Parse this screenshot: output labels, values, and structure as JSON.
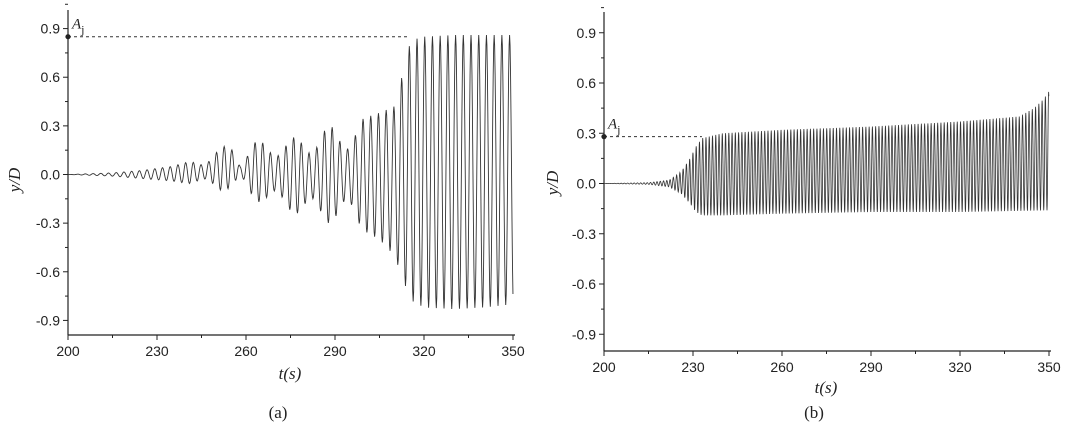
{
  "chart_data": [
    {
      "type": "line",
      "panel_label": "(a)",
      "xlabel": "t(s)",
      "ylabel": "y/D",
      "xlim": [
        200,
        350
      ],
      "ylim": [
        -0.99,
        0.99
      ],
      "x_ticks": [
        200,
        230,
        260,
        290,
        320,
        350
      ],
      "y_ticks": [
        0.9,
        0.6,
        0.3,
        0.0,
        -0.3,
        -0.6,
        -0.9
      ],
      "y_tick_labels": [
        "0.9",
        "0.6",
        "0.3",
        "0.0",
        "-0.3",
        "-0.6",
        "-0.9"
      ],
      "annotation": {
        "label": "A",
        "subscript": "j",
        "value": 0.85,
        "x_start": 200,
        "x_end": 315
      },
      "series": [
        {
          "envelope_upper": {
            "x": [
              200,
              215,
              225,
              235,
              245,
              252,
              256,
              258,
              262,
              268,
              275,
              280,
              288,
              295,
              300,
              305,
              310,
              312,
              314,
              316,
              320,
              330,
              340,
              350
            ],
            "y": [
              0.0,
              0.01,
              0.025,
              0.05,
              0.1,
              0.17,
              0.2,
              0.08,
              0.2,
              0.22,
              0.22,
              0.26,
              0.3,
              0.32,
              0.35,
              0.38,
              0.42,
              0.55,
              0.75,
              0.83,
              0.85,
              0.86,
              0.86,
              0.86
            ]
          },
          "envelope_lower": {
            "x": [
              200,
              215,
              225,
              235,
              245,
              252,
              256,
              258,
              262,
              268,
              275,
              280,
              288,
              295,
              300,
              305,
              310,
              312,
              314,
              316,
              320,
              330,
              340,
              350
            ],
            "y": [
              0.0,
              -0.01,
              -0.025,
              -0.04,
              -0.07,
              -0.1,
              -0.11,
              -0.04,
              -0.15,
              -0.2,
              -0.23,
              -0.28,
              -0.3,
              -0.32,
              -0.35,
              -0.4,
              -0.5,
              -0.6,
              -0.7,
              -0.78,
              -0.82,
              -0.83,
              -0.82,
              -0.8
            ]
          },
          "approx_period_s": 2.6
        }
      ]
    },
    {
      "type": "line",
      "panel_label": "(b)",
      "xlabel": "t(s)",
      "ylabel": "y/D",
      "xlim": [
        200,
        350
      ],
      "ylim": [
        -1.0,
        1.0
      ],
      "x_ticks": [
        200,
        230,
        260,
        290,
        320,
        350
      ],
      "y_ticks": [
        0.9,
        0.6,
        0.3,
        0.0,
        -0.3,
        -0.6,
        -0.9
      ],
      "y_tick_labels": [
        "0.9",
        "0.6",
        "0.3",
        "0.0",
        "-0.3",
        "-0.6",
        "-0.9"
      ],
      "annotation": {
        "label": "A",
        "subscript": "j",
        "value": 0.28,
        "x_start": 200,
        "x_end": 233
      },
      "series": [
        {
          "envelope_upper": {
            "x": [
              200,
              215,
              222,
              226,
              229,
              231,
              233,
              240,
              260,
              290,
              320,
              340,
              345,
              348,
              350
            ],
            "y": [
              0.0,
              0.005,
              0.02,
              0.07,
              0.15,
              0.22,
              0.27,
              0.3,
              0.32,
              0.34,
              0.37,
              0.4,
              0.45,
              0.5,
              0.55
            ]
          },
          "envelope_lower": {
            "x": [
              200,
              215,
              222,
              226,
              229,
              231,
              233,
              240,
              260,
              290,
              320,
              350
            ],
            "y": [
              0.0,
              -0.005,
              -0.02,
              -0.06,
              -0.12,
              -0.17,
              -0.19,
              -0.19,
              -0.18,
              -0.17,
              -0.17,
              -0.16
            ]
          },
          "approx_period_s": 1.1
        }
      ]
    }
  ]
}
